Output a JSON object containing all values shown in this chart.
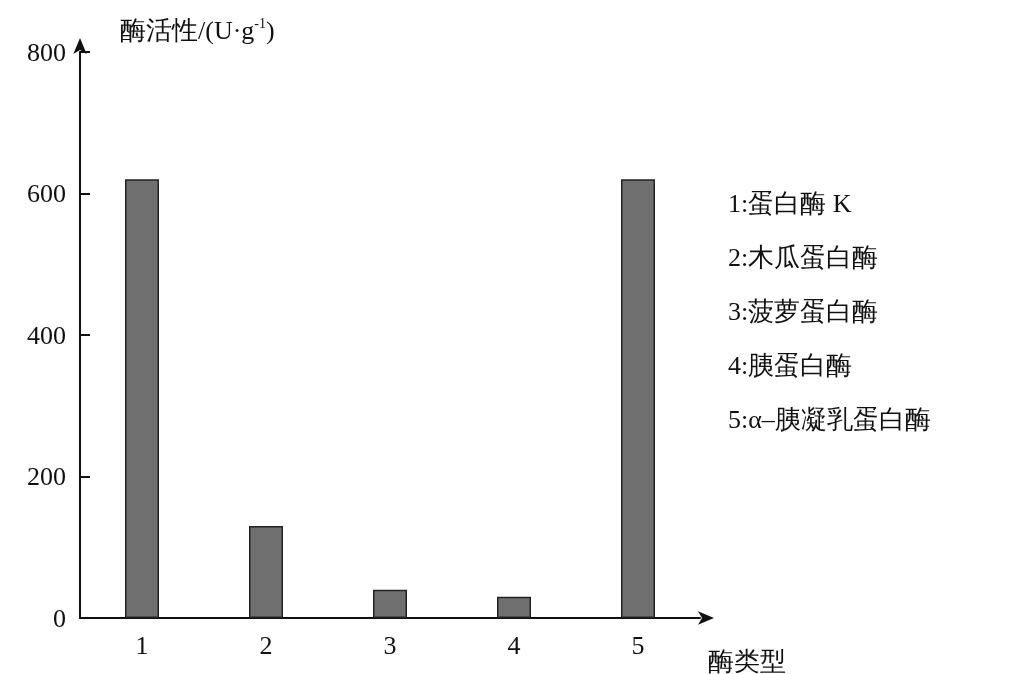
{
  "chart_data": {
    "type": "bar",
    "ylabel": "酶活性/(U·g$^{-1}$)",
    "xlabel": "酶类型",
    "categories": [
      "1",
      "2",
      "3",
      "4",
      "5"
    ],
    "values": [
      620,
      130,
      40,
      30,
      620
    ],
    "color": "#707070",
    "ylim": [
      0,
      800
    ],
    "yticks": [
      0,
      200,
      400,
      600,
      800
    ],
    "grid": false,
    "annotations": [
      "1:蛋白酶 K",
      "2:木瓜蛋白酶",
      "3:菠萝蛋白酶",
      "4:胰蛋白酶",
      "5:α–胰凝乳蛋白酶"
    ]
  }
}
